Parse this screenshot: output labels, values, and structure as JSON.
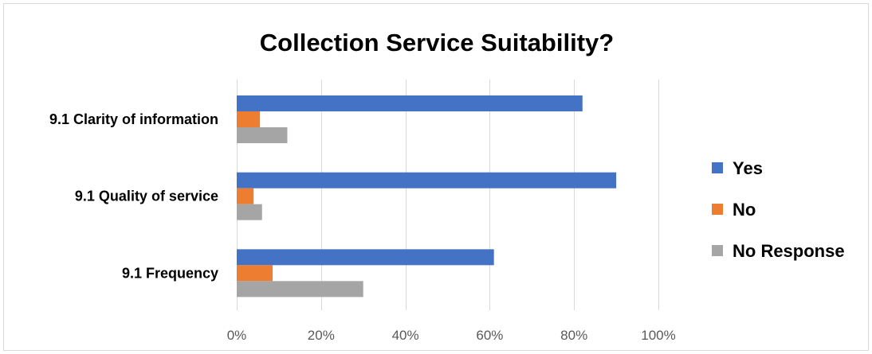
{
  "chart_data": {
    "type": "bar",
    "orientation": "horizontal",
    "title": "Collection Service Suitability?",
    "categories": [
      "9.1 Clarity of information",
      "9.1 Quality of service",
      "9.1 Frequency"
    ],
    "series": [
      {
        "name": "Yes",
        "color": "#4472c4",
        "values": [
          82,
          90,
          61
        ]
      },
      {
        "name": "No",
        "color": "#ed7d31",
        "values": [
          5.5,
          4,
          8.5
        ]
      },
      {
        "name": "No Response",
        "color": "#a5a5a5",
        "values": [
          12,
          6,
          30
        ]
      }
    ],
    "xlim": [
      0,
      100
    ],
    "x_ticks": [
      "0%",
      "20%",
      "40%",
      "60%",
      "80%",
      "100%"
    ],
    "x_tick_values": [
      0,
      20,
      40,
      60,
      80,
      100
    ],
    "grid": true,
    "legend_position": "right"
  }
}
